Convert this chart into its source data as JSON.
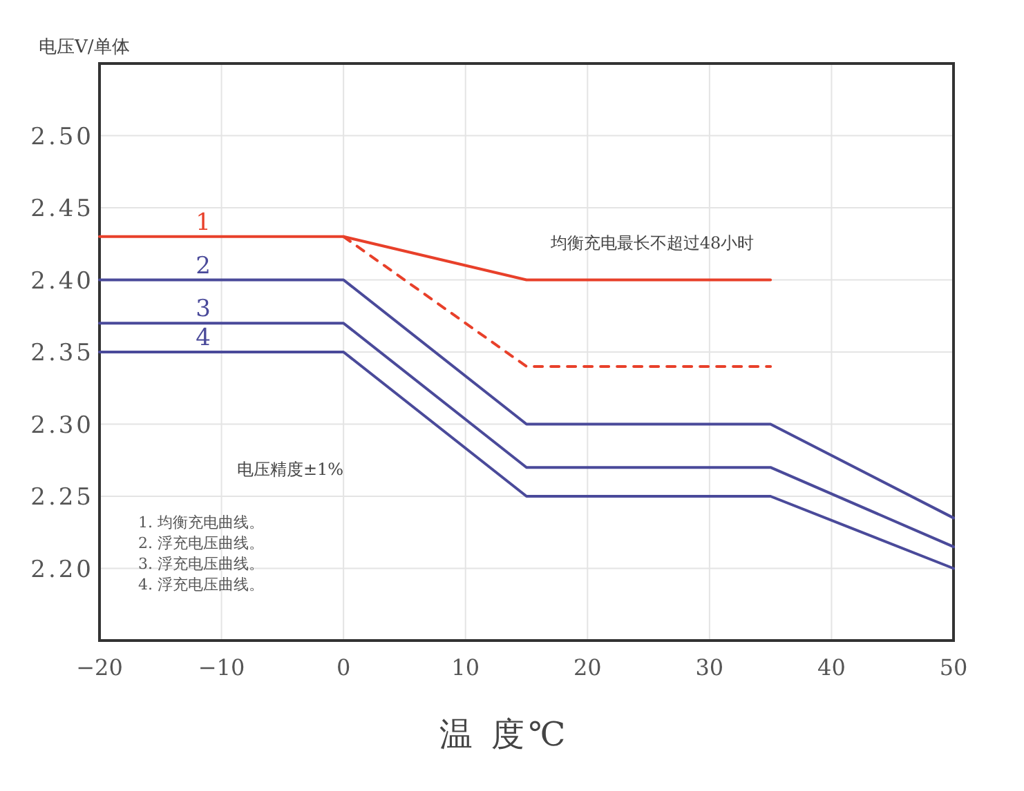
{
  "chart_data": {
    "type": "line",
    "xlabel": "温 度℃",
    "ylabel": "电压V/单体",
    "xlim": [
      -20,
      50
    ],
    "ylim": [
      2.15,
      2.55
    ],
    "xticks": [
      -20,
      -10,
      0,
      10,
      20,
      30,
      40,
      50
    ],
    "yticks": [
      {
        "value": 2.2,
        "label": "2.20"
      },
      {
        "value": 2.25,
        "label": "2.25"
      },
      {
        "value": 2.3,
        "label": "2.30"
      },
      {
        "value": 2.35,
        "label": "2.35"
      },
      {
        "value": 2.4,
        "label": "2.40"
      },
      {
        "value": 2.45,
        "label": "2.45"
      },
      {
        "value": 2.5,
        "label": "2.50"
      }
    ],
    "grid": true,
    "marker": "none",
    "series": [
      {
        "name": "1",
        "color": "#e8402a",
        "line_style": "solid",
        "x": [
          -20,
          0,
          15,
          35
        ],
        "values": [
          2.43,
          2.43,
          2.4,
          2.4
        ]
      },
      {
        "color": "#e8402a",
        "line_style": "dashed",
        "x": [
          0,
          15,
          35
        ],
        "values": [
          2.43,
          2.34,
          2.34
        ]
      },
      {
        "name": "2",
        "color": "#4a4a9a",
        "line_style": "solid",
        "x": [
          -20,
          0,
          15,
          35,
          50
        ],
        "values": [
          2.4,
          2.4,
          2.3,
          2.3,
          2.235
        ]
      },
      {
        "name": "3",
        "color": "#4a4a9a",
        "line_style": "solid",
        "x": [
          -20,
          0,
          15,
          35,
          50
        ],
        "values": [
          2.37,
          2.37,
          2.27,
          2.27,
          2.215
        ]
      },
      {
        "name": "4",
        "color": "#4a4a9a",
        "line_style": "solid",
        "x": [
          -20,
          0,
          15,
          35,
          50
        ],
        "values": [
          2.35,
          2.35,
          2.25,
          2.25,
          2.2
        ]
      }
    ],
    "annotations": [
      "均衡充电最长不超过48小时",
      "电压精度±1%",
      "1. 均衡充电曲线。",
      "2. 浮充电压曲线。",
      "3. 浮充电压曲线。",
      "4. 浮充电压曲线。"
    ]
  }
}
